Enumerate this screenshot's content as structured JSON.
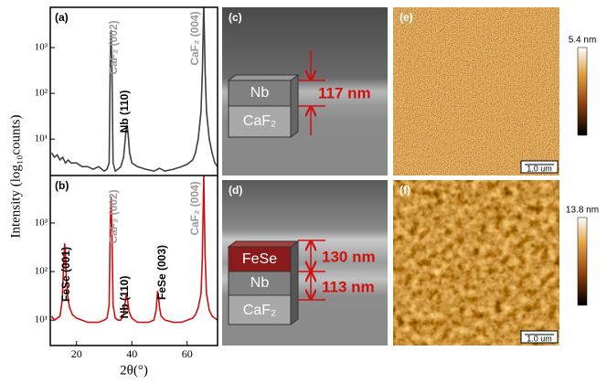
{
  "y_label": "Intensity (log₁₀counts)",
  "chart_data": [
    {
      "type": "line",
      "panel": "(a)",
      "log": true,
      "ylim": [
        1.6,
        7600
      ],
      "xlim": [
        10.5,
        71
      ],
      "yticks": [
        {
          "value": 10,
          "label": "10¹"
        },
        {
          "value": 100,
          "label": "10²"
        },
        {
          "value": 1000,
          "label": "10³"
        }
      ],
      "annotations": [
        "CaF₂ (002)",
        "Nb (110)",
        "CaF₂ (004)"
      ],
      "series": [
        {
          "color": "#404040",
          "x": [
            11,
            12,
            13,
            14,
            15,
            16,
            17,
            18,
            20,
            22,
            24,
            26,
            28,
            30,
            31,
            31.8,
            32.2,
            32.5,
            32.8,
            33.2,
            34,
            35,
            36,
            37,
            37.6,
            38,
            38.3,
            38.7,
            39.2,
            40,
            42,
            45,
            48,
            50,
            52,
            55,
            58,
            60,
            62,
            63,
            64,
            65,
            65.5,
            66,
            66.5,
            67,
            68,
            69,
            70,
            71
          ],
          "values": [
            5,
            4,
            4.5,
            3.5,
            4,
            3,
            3.5,
            3,
            3,
            2.5,
            2.5,
            2.2,
            2.5,
            2,
            2.2,
            3,
            500,
            2400,
            300,
            3,
            2,
            2.2,
            2.5,
            4,
            10,
            18,
            20,
            12,
            5,
            3,
            2.5,
            2.2,
            2,
            2.3,
            2,
            2.2,
            2.5,
            2.8,
            3.5,
            5,
            10,
            40,
            300,
            10000,
            300,
            40,
            10,
            5,
            3,
            2.5
          ]
        }
      ]
    },
    {
      "type": "line",
      "panel": "(b)",
      "log": true,
      "ylim": [
        3,
        9500
      ],
      "xlim": [
        10.5,
        71
      ],
      "x_label": "2θ(°)",
      "xticks": [
        20,
        40,
        60
      ],
      "yticks": [
        {
          "value": 10,
          "label": "10¹"
        },
        {
          "value": 100,
          "label": "10²"
        },
        {
          "value": 1000,
          "label": "10³"
        }
      ],
      "annotations": [
        "FeSe (001)",
        "CaF₂ (002)",
        "Nb (110)",
        "FeSe (003)",
        "CaF₂ (004)"
      ],
      "series": [
        {
          "color": "#d01010",
          "x": [
            11,
            12,
            13,
            14,
            14.8,
            15.3,
            15.7,
            16,
            16.3,
            16.8,
            17.5,
            18.5,
            20,
            22,
            24,
            26,
            28,
            30,
            31,
            31.8,
            32.2,
            32.5,
            32.8,
            33.2,
            34,
            35,
            36,
            37,
            37.5,
            38,
            38.4,
            39,
            40,
            42,
            44,
            46,
            48,
            48.8,
            49.3,
            49.6,
            50,
            50.6,
            52,
            55,
            58,
            60,
            62,
            63,
            64,
            65,
            65.5,
            66,
            66.5,
            67,
            68,
            69,
            70,
            71
          ],
          "values": [
            12,
            10,
            11,
            12,
            25,
            120,
            380,
            250,
            80,
            30,
            18,
            13,
            11,
            10,
            9,
            9,
            9,
            10,
            11,
            20,
            800,
            3500,
            600,
            20,
            11,
            10,
            10,
            13,
            22,
            34,
            28,
            15,
            11,
            9,
            9,
            9,
            10,
            16,
            40,
            32,
            18,
            12,
            10,
            9,
            9,
            10,
            11,
            13,
            18,
            35,
            200,
            10000,
            200,
            35,
            16,
            12,
            11,
            10
          ]
        }
      ]
    }
  ],
  "panels": [
    {
      "label": "(c)",
      "layers": [
        "Nb",
        "CaF₂"
      ],
      "thickness": [
        "117 nm"
      ]
    },
    {
      "label": "(d)",
      "layers": [
        "FeSe",
        "Nb",
        "CaF₂"
      ],
      "thickness": [
        "130 nm",
        "113 nm"
      ]
    },
    {
      "label": "(e)",
      "colorbar": "5.4 nm",
      "scale": "1.0 um"
    },
    {
      "label": "(f)",
      "colorbar": "13.8 nm",
      "scale": "1.0 um"
    }
  ]
}
